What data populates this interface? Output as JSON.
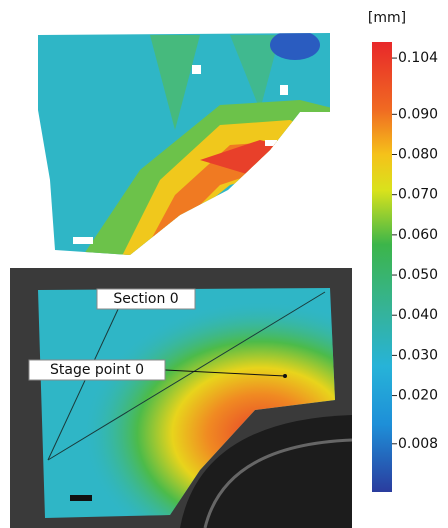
{
  "colorbar": {
    "unit": "[mm]",
    "lim": [
      -0.004,
      0.108
    ],
    "ticks": [
      0.104,
      {
        "value": 0.09,
        "label": "0.090"
      },
      {
        "value": 0.08,
        "label": "0.080"
      },
      {
        "value": 0.07,
        "label": "0.070"
      },
      {
        "value": 0.06,
        "label": "0.060"
      },
      {
        "value": 0.05,
        "label": "0.050"
      },
      {
        "value": 0.04,
        "label": "0.040"
      },
      {
        "value": 0.03,
        "label": "0.030"
      },
      {
        "value": 0.02,
        "label": "0.020"
      },
      0.008
    ]
  },
  "annotations": {
    "section": "Section 0",
    "stage_point": "Stage point 0"
  }
}
